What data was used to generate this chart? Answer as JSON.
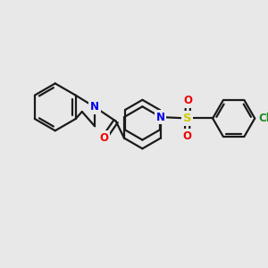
{
  "bg_color": "#e8e8e8",
  "bond_color": "#1a1a1a",
  "N_color": "#0000ee",
  "O_color": "#ee0000",
  "S_color": "#cccc00",
  "Cl_color": "#228822",
  "line_width": 1.6,
  "figsize": [
    3.0,
    3.0
  ],
  "dpi": 100,
  "xlim": [
    0,
    10
  ],
  "ylim": [
    0,
    10
  ]
}
